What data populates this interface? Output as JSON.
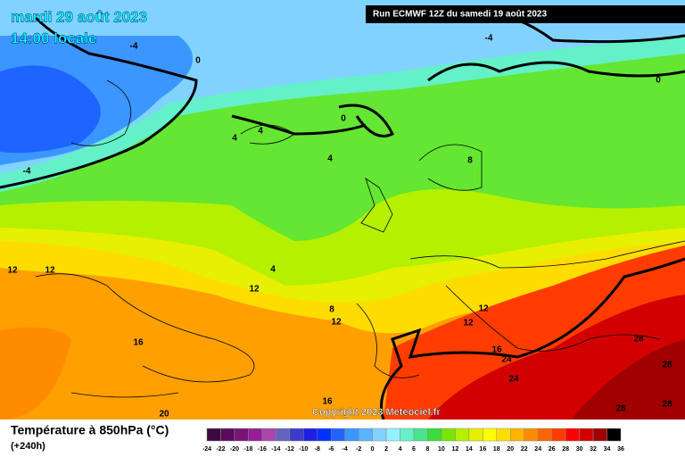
{
  "header": {
    "date": "mardi 29 août 2023",
    "time": "14:00 locale",
    "run": "Run ECMWF 12Z du samedi 19 août 2023"
  },
  "copyright": "Copyright 2023 Meteociel.fr",
  "contour_labels": [
    "-4",
    "-4",
    "-4",
    "0",
    "0",
    "0",
    "4",
    "4",
    "4",
    "4",
    "8",
    "8",
    "12",
    "12",
    "12",
    "12",
    "12",
    "12",
    "16",
    "16",
    "16",
    "20",
    "24",
    "24",
    "28",
    "28",
    "28",
    "28"
  ],
  "legend": {
    "title": "Température à 850hPa (°C)",
    "subtitle": "(+240h)",
    "ticks": [
      "-24",
      "-22",
      "-20",
      "-18",
      "-16",
      "-14",
      "-12",
      "-10",
      "-8",
      "-6",
      "-4",
      "-2",
      "0",
      "2",
      "4",
      "6",
      "8",
      "10",
      "12",
      "14",
      "16",
      "18",
      "20",
      "22",
      "24",
      "26",
      "28",
      "30",
      "32",
      "34",
      "36"
    ],
    "colors": [
      "#3c0a3c",
      "#5a0a5a",
      "#781478",
      "#961e96",
      "#aa46aa",
      "#6464be",
      "#3c3cc8",
      "#1e1ee6",
      "#0032ff",
      "#1e64ff",
      "#3c96ff",
      "#5ab4ff",
      "#82d2ff",
      "#96f0ff",
      "#64f0c8",
      "#46e68c",
      "#3cdc3c",
      "#78e600",
      "#b4f000",
      "#e6f000",
      "#ffff00",
      "#ffdc00",
      "#ffb400",
      "#ff8c00",
      "#ff6400",
      "#ff3c00",
      "#ff0000",
      "#d20000",
      "#a00000",
      "#000000"
    ]
  }
}
